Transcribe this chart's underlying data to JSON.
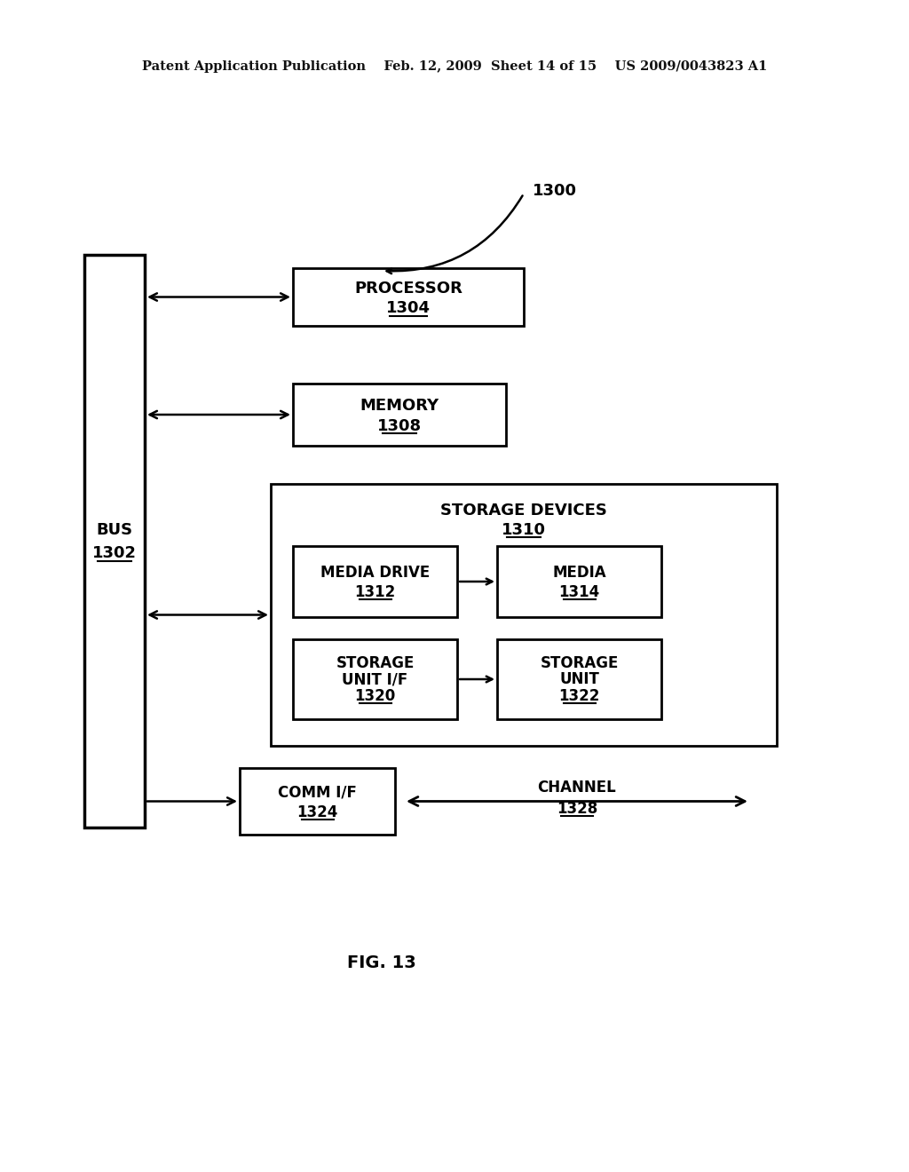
{
  "bg_color": "#ffffff",
  "header_text": "Patent Application Publication    Feb. 12, 2009  Sheet 14 of 15    US 2009/0043823 A1",
  "fig_label": "FIG. 13",
  "label_1300": "1300",
  "bus_label1": "BUS",
  "bus_label2": "1302",
  "processor_label1": "PROCESSOR",
  "processor_label2": "1304",
  "memory_label1": "MEMORY",
  "memory_label2": "1308",
  "storage_devices_label1": "STORAGE DEVICES",
  "storage_devices_label2": "1310",
  "media_drive_label1": "MEDIA DRIVE",
  "media_drive_label2": "1312",
  "media_label1": "MEDIA",
  "media_label2": "1314",
  "storage_unit_if_label1": "STORAGE",
  "storage_unit_if_label2": "UNIT I/F",
  "storage_unit_if_label3": "1320",
  "storage_unit_label1": "STORAGE",
  "storage_unit_label2": "UNIT",
  "storage_unit_label3": "1322",
  "comm_if_label1": "COMM I/F",
  "comm_if_label2": "1324",
  "channel_label1": "CHANNEL",
  "channel_label2": "1328"
}
